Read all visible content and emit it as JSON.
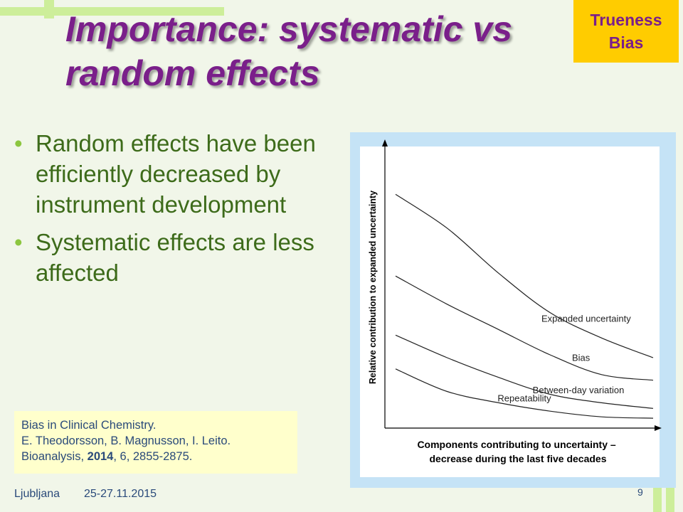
{
  "slide": {
    "title_line1": "Importance: systematic vs",
    "title_line2": "random effects",
    "badge_line1": "Trueness",
    "badge_line2": "Bias",
    "bullets": [
      "Random effects have been efficiently decreased by instrument development",
      "Systematic effects are less affected"
    ],
    "bullet_glyph": "•",
    "citation": {
      "line1": "Bias in Clinical Chemistry.",
      "line2": "E. Theodorsson, B. Magnusson, I. Leito.",
      "line3_prefix": "Bioanalysis, ",
      "line3_year": "2014",
      "line3_suffix": ", 6, 2855-2875."
    },
    "footer_place": "Ljubljana",
    "footer_date": "25-27.11.2015",
    "page_number": "9",
    "colors": {
      "title": "#7a1f8a",
      "badge": "#ffcc00",
      "bullet_text": "#3d6b1a",
      "panel": "#c5e3f6",
      "citation_bg": "#ffffcc"
    }
  },
  "chart_data": {
    "type": "line",
    "title": "Components contributing to uncertainty – decrease during the last five decades",
    "ylabel": "Relative contribution to expanded uncertainty",
    "xlabel": "",
    "x": [
      0,
      1,
      2,
      3,
      4,
      5
    ],
    "xlim": [
      0,
      5
    ],
    "ylim": [
      0,
      10
    ],
    "grid": false,
    "legend": "inline labels on curves",
    "series": [
      {
        "name": "Expanded uncertainty",
        "values": [
          8.3,
          7.1,
          5.5,
          4.1,
          3.2,
          2.5
        ]
      },
      {
        "name": "Bias",
        "values": [
          5.4,
          4.4,
          3.5,
          2.6,
          1.9,
          1.7
        ]
      },
      {
        "name": "Between-day variation",
        "values": [
          3.3,
          2.5,
          1.8,
          1.2,
          0.9,
          0.7
        ]
      },
      {
        "name": "Repeatability",
        "values": [
          2.1,
          1.3,
          0.9,
          0.6,
          0.4,
          0.35
        ]
      }
    ]
  }
}
